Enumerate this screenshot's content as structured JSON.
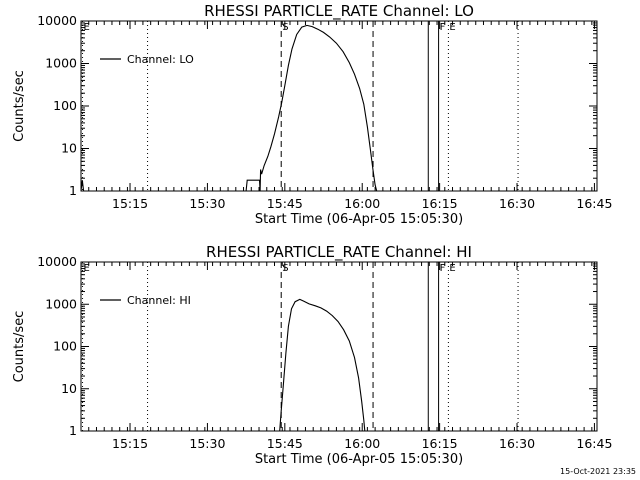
{
  "timestamp": "15-Oct-2021 23:35",
  "chart_data": [
    {
      "type": "line",
      "title": "RHESSI PARTICLE_RATE Channel: LO",
      "xlabel": "Start Time (06-Apr-05 15:05:30)",
      "ylabel": "Counts/sec",
      "yscale": "log",
      "ylim": [
        1,
        10000
      ],
      "yticks": [
        {
          "v": 1,
          "label": "1"
        },
        {
          "v": 10,
          "label": "10"
        },
        {
          "v": 100,
          "label": "100"
        },
        {
          "v": 1000,
          "label": "1000"
        },
        {
          "v": 10000,
          "label": "10000"
        }
      ],
      "xlim": [
        0,
        100
      ],
      "xticks": [
        {
          "v": 9.5,
          "label": "15:15"
        },
        {
          "v": 24.5,
          "label": "15:30"
        },
        {
          "v": 39.5,
          "label": "15:45"
        },
        {
          "v": 54.5,
          "label": "16:00"
        },
        {
          "v": 69.5,
          "label": "16:15"
        },
        {
          "v": 84.5,
          "label": "16:30"
        },
        {
          "v": 99.5,
          "label": "16:45"
        }
      ],
      "legend": {
        "label": "Channel: LO",
        "position": "top-left"
      },
      "markers": [
        {
          "x": 0.3,
          "label": "E",
          "style": "dotted"
        },
        {
          "x": 12.9,
          "label": "",
          "style": "dotted"
        },
        {
          "x": 38.8,
          "label": "S",
          "style": "dashed"
        },
        {
          "x": 56.6,
          "label": "",
          "style": "dashed"
        },
        {
          "x": 67.3,
          "label": "",
          "style": "solid"
        },
        {
          "x": 69.3,
          "label": "F",
          "style": "solid"
        },
        {
          "x": 71.2,
          "label": "E",
          "style": "dotted"
        },
        {
          "x": 84.7,
          "label": "",
          "style": "dotted"
        }
      ],
      "series": [
        {
          "name": "Channel: LO",
          "segments": [
            [
              [
                0.0,
                1.0
              ],
              [
                0.25,
                1.8
              ],
              [
                0.5,
                1.0
              ]
            ],
            [
              [
                32.0,
                1.0
              ],
              [
                32.2,
                1.8
              ],
              [
                34.6,
                1.8
              ],
              [
                34.7,
                1.0
              ],
              [
                34.8,
                3.2
              ],
              [
                35.0,
                2.5
              ],
              [
                35.5,
                4.0
              ],
              [
                36.2,
                6.5
              ],
              [
                36.8,
                11
              ],
              [
                37.5,
                22
              ],
              [
                38.3,
                55
              ],
              [
                38.9,
                120
              ],
              [
                39.5,
                300
              ],
              [
                40.2,
                900
              ],
              [
                40.9,
                2200
              ],
              [
                41.8,
                4800
              ],
              [
                42.8,
                7200
              ],
              [
                43.8,
                7900
              ],
              [
                44.8,
                7400
              ],
              [
                45.9,
                6400
              ],
              [
                47.0,
                5400
              ],
              [
                48.2,
                4200
              ],
              [
                49.5,
                3000
              ],
              [
                50.8,
                1900
              ],
              [
                52.0,
                1050
              ],
              [
                53.0,
                560
              ],
              [
                54.0,
                260
              ],
              [
                54.8,
                110
              ],
              [
                55.5,
                32
              ],
              [
                56.1,
                9
              ],
              [
                56.6,
                3
              ],
              [
                57.0,
                1.4
              ],
              [
                57.3,
                1.0
              ]
            ]
          ]
        }
      ]
    },
    {
      "type": "line",
      "title": "RHESSI PARTICLE_RATE Channel: HI",
      "xlabel": "Start Time (06-Apr-05 15:05:30)",
      "ylabel": "Counts/sec",
      "yscale": "log",
      "ylim": [
        1,
        10000
      ],
      "yticks": [
        {
          "v": 1,
          "label": "1"
        },
        {
          "v": 10,
          "label": "10"
        },
        {
          "v": 100,
          "label": "100"
        },
        {
          "v": 1000,
          "label": "1000"
        },
        {
          "v": 10000,
          "label": "10000"
        }
      ],
      "xlim": [
        0,
        100
      ],
      "xticks": [
        {
          "v": 9.5,
          "label": "15:15"
        },
        {
          "v": 24.5,
          "label": "15:30"
        },
        {
          "v": 39.5,
          "label": "15:45"
        },
        {
          "v": 54.5,
          "label": "16:00"
        },
        {
          "v": 69.5,
          "label": "16:15"
        },
        {
          "v": 84.5,
          "label": "16:30"
        },
        {
          "v": 99.5,
          "label": "16:45"
        }
      ],
      "legend": {
        "label": "Channel: HI",
        "position": "top-left"
      },
      "markers": [
        {
          "x": 0.3,
          "label": "E",
          "style": "dotted"
        },
        {
          "x": 12.9,
          "label": "",
          "style": "dotted"
        },
        {
          "x": 38.8,
          "label": "S",
          "style": "dashed"
        },
        {
          "x": 56.6,
          "label": "",
          "style": "dashed"
        },
        {
          "x": 67.3,
          "label": "",
          "style": "solid"
        },
        {
          "x": 69.3,
          "label": "F",
          "style": "solid"
        },
        {
          "x": 71.2,
          "label": "E",
          "style": "dotted"
        },
        {
          "x": 84.7,
          "label": "",
          "style": "dotted"
        }
      ],
      "series": [
        {
          "name": "Channel: HI",
          "segments": [
            [
              [
                38.5,
                1.0
              ],
              [
                38.8,
                3
              ],
              [
                39.2,
                12
              ],
              [
                39.7,
                70
              ],
              [
                40.2,
                300
              ],
              [
                40.8,
                780
              ],
              [
                41.5,
                1150
              ],
              [
                42.4,
                1300
              ],
              [
                43.2,
                1180
              ],
              [
                44.2,
                1020
              ],
              [
                45.4,
                920
              ],
              [
                46.5,
                820
              ],
              [
                47.6,
                690
              ],
              [
                48.7,
                540
              ],
              [
                49.8,
                390
              ],
              [
                50.9,
                250
              ],
              [
                52.0,
                135
              ],
              [
                53.0,
                55
              ],
              [
                53.8,
                18
              ],
              [
                54.4,
                5
              ],
              [
                54.8,
                1.8
              ],
              [
                55.0,
                1.0
              ]
            ]
          ]
        }
      ]
    }
  ]
}
